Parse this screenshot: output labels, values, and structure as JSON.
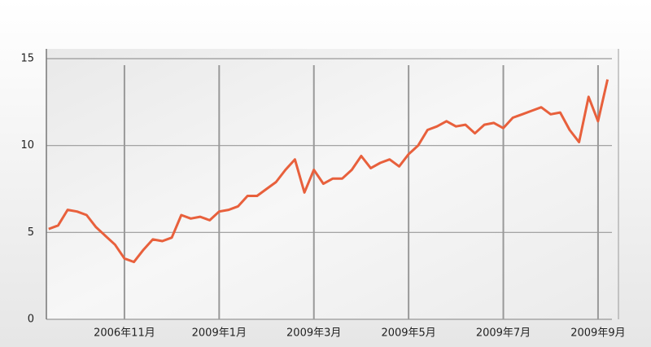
{
  "chart_data": {
    "type": "line",
    "categories": [
      null,
      null,
      null,
      null,
      null,
      null,
      null,
      null,
      "2006年11月",
      null,
      null,
      null,
      null,
      null,
      null,
      null,
      null,
      null,
      "2009年1月",
      null,
      null,
      null,
      null,
      null,
      null,
      null,
      null,
      null,
      "2009年3月",
      null,
      null,
      null,
      null,
      null,
      null,
      null,
      null,
      null,
      "2009年5月",
      null,
      null,
      null,
      null,
      null,
      null,
      null,
      null,
      null,
      "2009年7月",
      null,
      null,
      null,
      null,
      null,
      null,
      null,
      null,
      null,
      "2009年9月",
      null
    ],
    "series": [
      {
        "color": "#e8603c",
        "values": [
          5.2,
          5.4,
          6.3,
          6.2,
          6.0,
          5.3,
          4.8,
          4.3,
          3.5,
          3.3,
          4.0,
          4.6,
          4.5,
          4.7,
          6.0,
          5.8,
          5.9,
          5.7,
          6.2,
          6.3,
          6.5,
          7.1,
          7.1,
          7.5,
          7.9,
          8.6,
          9.2,
          7.3,
          8.6,
          7.8,
          8.1,
          8.1,
          8.6,
          9.4,
          8.7,
          9.0,
          9.2,
          8.8,
          9.5,
          10.0,
          10.9,
          11.1,
          11.4,
          11.1,
          11.2,
          10.7,
          11.2,
          11.3,
          11.0,
          11.6,
          11.8,
          12.0,
          12.2,
          11.8,
          11.9,
          10.9,
          10.2,
          12.8,
          11.4,
          13.8
        ]
      }
    ],
    "ylim": [
      0,
      15
    ],
    "yticks": [
      0,
      5,
      10,
      15
    ],
    "grid": true
  }
}
